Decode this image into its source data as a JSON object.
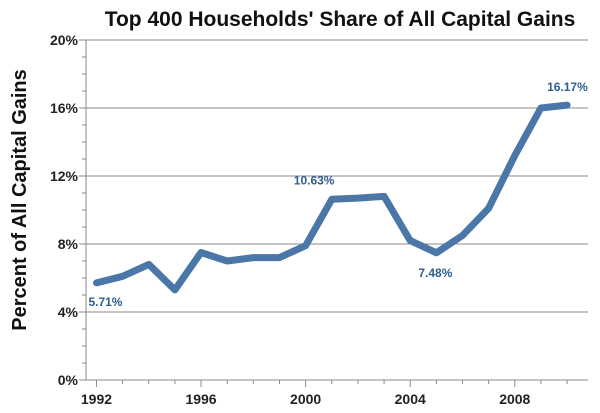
{
  "chart_data": {
    "type": "line",
    "title": "Top 400 Households' Share of All Capital Gains",
    "xlabel": "",
    "ylabel": "Percent of All Capital Gains",
    "ylim": [
      0,
      20
    ],
    "xlim": [
      1992,
      2010
    ],
    "y_ticks": [
      0,
      4,
      8,
      12,
      16,
      20
    ],
    "y_tick_labels": [
      "0%",
      "4%",
      "8%",
      "12%",
      "16%",
      "20%"
    ],
    "x_ticks": [
      1992,
      1996,
      2000,
      2004,
      2008
    ],
    "x_tick_labels": [
      "1992",
      "1996",
      "2000",
      "2004",
      "2008"
    ],
    "grid": "horizontal",
    "color": "#4a76a8",
    "series": [
      {
        "x": [
          1992,
          1993,
          1994,
          1995,
          1996,
          1997,
          1998,
          1999,
          2000,
          2001,
          2002,
          2003,
          2004,
          2005,
          2006,
          2007,
          2008,
          2009,
          2010
        ],
        "y": [
          5.71,
          6.1,
          6.8,
          5.3,
          7.5,
          7.0,
          7.2,
          7.2,
          7.9,
          10.63,
          10.7,
          10.8,
          8.2,
          7.48,
          8.5,
          10.1,
          13.2,
          16.0,
          16.17
        ]
      }
    ],
    "annotations": [
      {
        "text": "5.71%",
        "x": 1992,
        "y": 5.71
      },
      {
        "text": "10.63%",
        "x": 2001,
        "y": 10.63
      },
      {
        "text": "7.48%",
        "x": 2005,
        "y": 7.48
      },
      {
        "text": "16.17%",
        "x": 2010,
        "y": 16.17
      }
    ]
  }
}
